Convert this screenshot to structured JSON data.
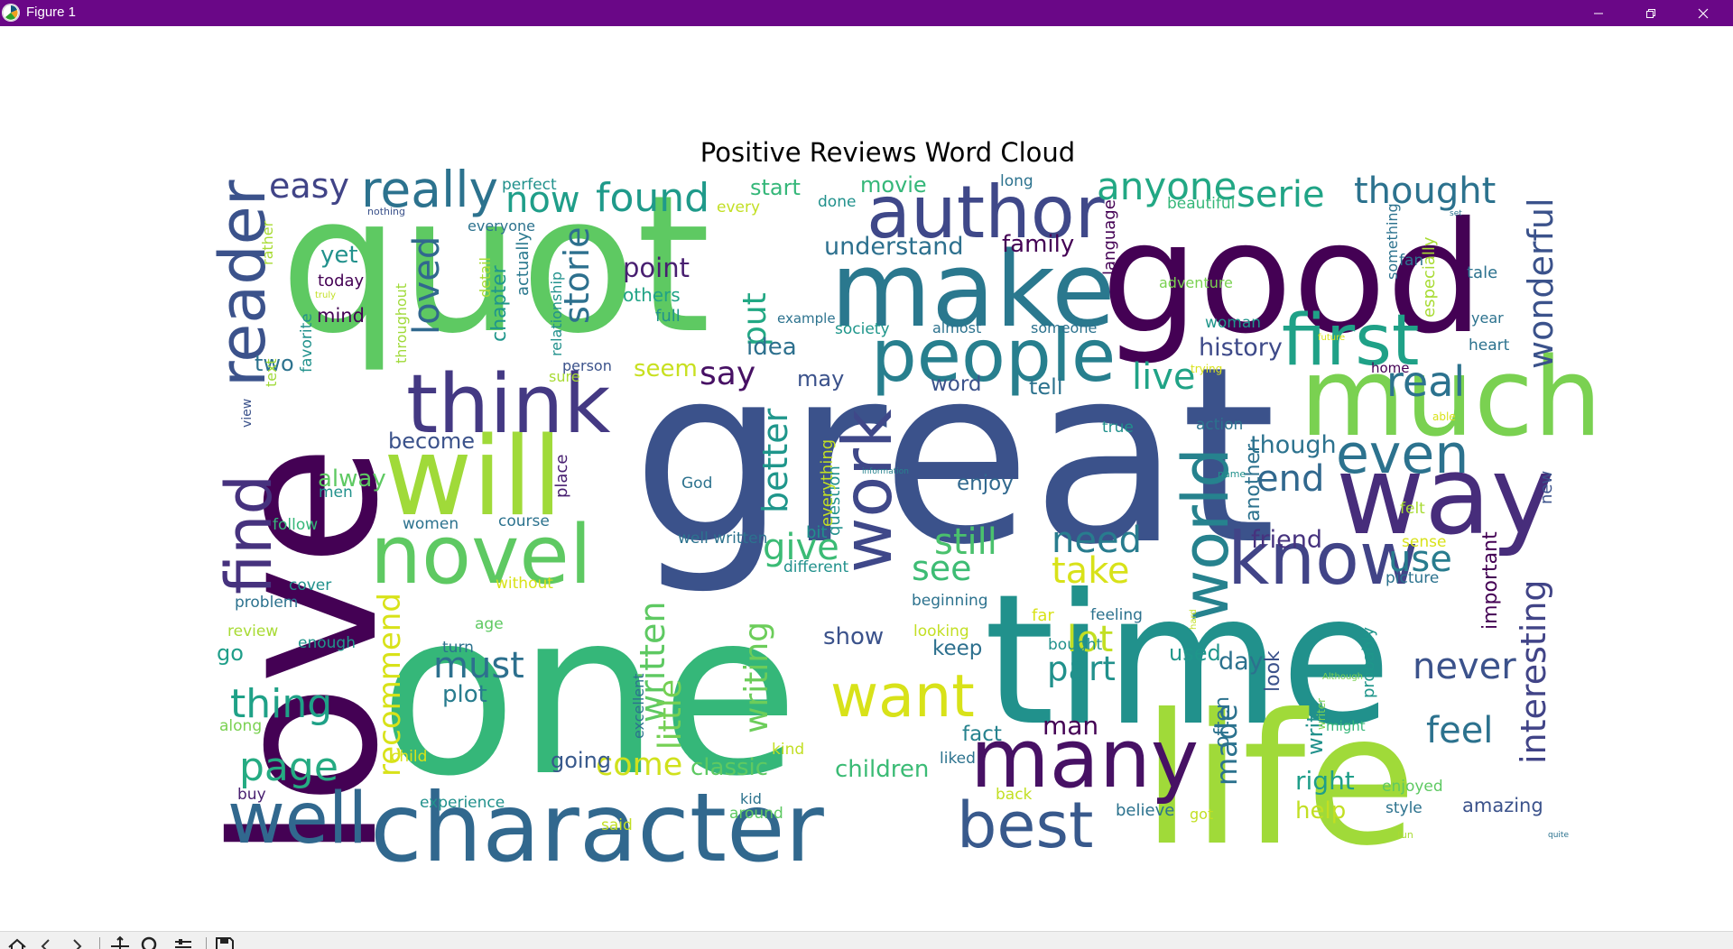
{
  "window": {
    "title": "Figure 1",
    "titlebar_color": "#6a0787",
    "icons": {
      "app": "matplotlib-icon",
      "minimize": "minimize-icon",
      "restore": "restore-icon",
      "close": "close-icon"
    }
  },
  "figure": {
    "title": "Positive Reviews Word Cloud",
    "background": "#ffffff",
    "colormap": "viridis"
  },
  "toolbar": {
    "buttons": [
      "home-icon",
      "back-icon",
      "forward-icon",
      "pan-icon",
      "zoom-icon",
      "configure-subplots-icon",
      "save-icon"
    ]
  },
  "words": [
    {
      "t": "quot",
      "c": "#5ec962",
      "r": 0
    },
    {
      "t": "good",
      "c": "#440154",
      "r": 0
    },
    {
      "t": "great",
      "c": "#3b528b",
      "r": 0
    },
    {
      "t": "one",
      "c": "#35b779",
      "r": 0
    },
    {
      "t": "time",
      "c": "#21918c",
      "r": 0
    },
    {
      "t": "love",
      "c": "#440154",
      "r": -90
    },
    {
      "t": "life",
      "c": "#a0da39",
      "r": 0
    },
    {
      "t": "make",
      "c": "#2a788e",
      "r": 0
    },
    {
      "t": "character",
      "c": "#31688e",
      "r": 0
    },
    {
      "t": "author",
      "c": "#3f4889",
      "r": 0
    },
    {
      "t": "much",
      "c": "#7ad151",
      "r": 0
    },
    {
      "t": "way",
      "c": "#472d7b",
      "r": 0
    },
    {
      "t": "will",
      "c": "#a0da39",
      "r": 0
    },
    {
      "t": "think",
      "c": "#443983",
      "r": 0
    },
    {
      "t": "novel",
      "c": "#5ec962",
      "r": 0
    },
    {
      "t": "people",
      "c": "#277f8e",
      "r": 0
    },
    {
      "t": "many",
      "c": "#471164",
      "r": 0
    },
    {
      "t": "first",
      "c": "#1fa187",
      "r": 0
    },
    {
      "t": "know",
      "c": "#414487",
      "r": 0
    },
    {
      "t": "best",
      "c": "#38598c",
      "r": 0
    },
    {
      "t": "well",
      "c": "#31688e",
      "r": 0
    },
    {
      "t": "even",
      "c": "#2c728e",
      "r": 0
    },
    {
      "t": "reader",
      "c": "#3b528b",
      "r": -90
    },
    {
      "t": "find",
      "c": "#46327e",
      "r": -90
    },
    {
      "t": "work",
      "c": "#3f4889",
      "r": -90
    },
    {
      "t": "world",
      "c": "#26828e",
      "r": -90
    },
    {
      "t": "want",
      "c": "#d8e219",
      "r": 0
    },
    {
      "t": "really",
      "c": "#2c728e",
      "r": 0
    },
    {
      "t": "found",
      "c": "#1f9a8a",
      "r": 0
    },
    {
      "t": "thought",
      "c": "#2c728e",
      "r": 0
    },
    {
      "t": "anyone",
      "c": "#22a884",
      "r": 0
    },
    {
      "t": "serie",
      "c": "#20a486",
      "r": 0
    },
    {
      "t": "easy",
      "c": "#414487",
      "r": 0
    },
    {
      "t": "now",
      "c": "#1f9e89",
      "r": 0
    },
    {
      "t": "storie",
      "c": "#2d708e",
      "r": -90
    },
    {
      "t": "loved",
      "c": "#31688e",
      "r": -90
    },
    {
      "t": "page",
      "c": "#25ab82",
      "r": 0
    },
    {
      "t": "thing",
      "c": "#1fa187",
      "r": 0
    },
    {
      "t": "must",
      "c": "#2d708e",
      "r": 0
    },
    {
      "t": "plot",
      "c": "#287c8e",
      "r": 0
    },
    {
      "t": "come",
      "c": "#d0e11c",
      "r": 0
    },
    {
      "t": "classic",
      "c": "#5ec962",
      "r": 0
    },
    {
      "t": "children",
      "c": "#3bbb75",
      "r": 0
    },
    {
      "t": "still",
      "c": "#4ac16d",
      "r": 0
    },
    {
      "t": "need",
      "c": "#287c8e",
      "r": 0
    },
    {
      "t": "take",
      "c": "#d8e219",
      "r": 0
    },
    {
      "t": "lot",
      "c": "#c2df23",
      "r": 0
    },
    {
      "t": "part",
      "c": "#21918c",
      "r": 0
    },
    {
      "t": "see",
      "c": "#3dbc74",
      "r": 0
    },
    {
      "t": "give",
      "c": "#3bbb75",
      "r": 0
    },
    {
      "t": "say",
      "c": "#471164",
      "r": 0
    },
    {
      "t": "better",
      "c": "#1f968b",
      "r": -90
    },
    {
      "t": "put",
      "c": "#22a884",
      "r": -90
    },
    {
      "t": "writing",
      "c": "#6ccd5a",
      "r": -90
    },
    {
      "t": "written",
      "c": "#5ec962",
      "r": -90
    },
    {
      "t": "little",
      "c": "#75d054",
      "r": -90
    },
    {
      "t": "recommend",
      "c": "#d8e219",
      "r": -90
    },
    {
      "t": "wonderful",
      "c": "#3b528b",
      "r": -90
    },
    {
      "t": "interesting",
      "c": "#414487",
      "r": -90
    },
    {
      "t": "made",
      "c": "#2c728e",
      "r": -90
    },
    {
      "t": "feel",
      "c": "#2c728e",
      "r": 0
    },
    {
      "t": "never",
      "c": "#3b528b",
      "r": 0
    },
    {
      "t": "use",
      "c": "#287c8e",
      "r": 0
    },
    {
      "t": "end",
      "c": "#31688e",
      "r": 0
    },
    {
      "t": "live",
      "c": "#20a386",
      "r": 0
    },
    {
      "t": "history",
      "c": "#3e4a89",
      "r": 0
    },
    {
      "t": "family",
      "c": "#440154",
      "r": 0
    },
    {
      "t": "understand",
      "c": "#2d708e",
      "r": 0
    },
    {
      "t": "movie",
      "c": "#35b779",
      "r": 0
    },
    {
      "t": "start",
      "c": "#35b779",
      "r": 0
    },
    {
      "t": "point",
      "c": "#481f70",
      "r": 0
    },
    {
      "t": "yet",
      "c": "#21918c",
      "r": 0
    },
    {
      "t": "idea",
      "c": "#2d708e",
      "r": 0
    },
    {
      "t": "man",
      "c": "#440154",
      "r": 0
    },
    {
      "t": "fact",
      "c": "#26828e",
      "r": 0
    },
    {
      "t": "keep",
      "c": "#2d708e",
      "r": 0
    },
    {
      "t": "enjoy",
      "c": "#31688e",
      "r": 0
    },
    {
      "t": "show",
      "c": "#3b528b",
      "r": 0
    },
    {
      "t": "going",
      "c": "#38598c",
      "r": 0
    },
    {
      "t": "right",
      "c": "#1f9e89",
      "r": 0
    },
    {
      "t": "help",
      "c": "#c2df23",
      "r": 0
    },
    {
      "t": "though",
      "c": "#2c728e",
      "r": 0
    },
    {
      "t": "friend",
      "c": "#46327e",
      "r": 0
    },
    {
      "t": "day",
      "c": "#2c728e",
      "r": 0
    },
    {
      "t": "used",
      "c": "#1f968b",
      "r": 0
    },
    {
      "t": "tell",
      "c": "#2c728e",
      "r": 0
    },
    {
      "t": "word",
      "c": "#3b528b",
      "r": 0
    },
    {
      "t": "may",
      "c": "#3b528b",
      "r": 0
    },
    {
      "t": "seem",
      "c": "#c8e020",
      "r": 0
    },
    {
      "t": "alway",
      "c": "#5ec962",
      "r": 0
    },
    {
      "t": "become",
      "c": "#3b528b",
      "r": 0
    },
    {
      "t": "two",
      "c": "#2c728e",
      "r": 0
    },
    {
      "t": "go",
      "c": "#1f9e89",
      "r": 0
    },
    {
      "t": "mind",
      "c": "#440154",
      "r": 0
    },
    {
      "t": "today",
      "c": "#440154",
      "r": 0
    },
    {
      "t": "full",
      "c": "#21918c",
      "r": 0
    },
    {
      "t": "others",
      "c": "#20a386",
      "r": 0
    },
    {
      "t": "chapter",
      "c": "#1f968b",
      "r": -90
    },
    {
      "t": "detail",
      "c": "#a8db34",
      "r": -90
    },
    {
      "t": "actually",
      "c": "#2a788e",
      "r": -90
    },
    {
      "t": "rather",
      "c": "#a8db34",
      "r": -90
    },
    {
      "t": "text",
      "c": "#a0da39",
      "r": -90
    },
    {
      "t": "view",
      "c": "#3b528b",
      "r": -90
    },
    {
      "t": "place",
      "c": "#481f70",
      "r": -90
    },
    {
      "t": "question",
      "c": "#21918c",
      "r": -90
    },
    {
      "t": "everything",
      "c": "#c2df23",
      "r": -90
    },
    {
      "t": "excellent",
      "c": "#2c728e",
      "r": -90
    },
    {
      "t": "another",
      "c": "#2c728e",
      "r": -90
    },
    {
      "t": "new",
      "c": "#3b528b",
      "r": -90
    },
    {
      "t": "important",
      "c": "#440154",
      "r": -90
    },
    {
      "t": "look",
      "c": "#3b528b",
      "r": -90
    },
    {
      "t": "often",
      "c": "#2c728e",
      "r": -90
    },
    {
      "t": "write",
      "c": "#21918c",
      "r": -90
    },
    {
      "t": "probably",
      "c": "#1f968b",
      "r": -90
    },
    {
      "t": "language",
      "c": "#440154",
      "r": -90
    },
    {
      "t": "something",
      "c": "#2c728e",
      "r": -90
    },
    {
      "t": "especially",
      "c": "#a8db34",
      "r": -90
    },
    {
      "t": "writer",
      "c": "#7ad151",
      "r": -90
    },
    {
      "t": "hard",
      "c": "#c2df23",
      "r": -90
    },
    {
      "t": "favorite",
      "c": "#21918c",
      "r": -90
    },
    {
      "t": "throughout",
      "c": "#a0da39",
      "r": -90
    },
    {
      "t": "relationship",
      "c": "#21918c",
      "r": -90
    },
    {
      "t": "person",
      "c": "#3b528b",
      "r": 0
    },
    {
      "t": "sure",
      "c": "#a8db34",
      "r": 0
    },
    {
      "t": "men",
      "c": "#21918c",
      "r": 0
    },
    {
      "t": "follow",
      "c": "#35b779",
      "r": 0
    },
    {
      "t": "women",
      "c": "#2c728e",
      "r": 0
    },
    {
      "t": "course",
      "c": "#2c728e",
      "r": 0
    },
    {
      "t": "cover",
      "c": "#21918c",
      "r": 0
    },
    {
      "t": "without",
      "c": "#d8e219",
      "r": 0
    },
    {
      "t": "problem",
      "c": "#2c728e",
      "r": 0
    },
    {
      "t": "review",
      "c": "#a8db34",
      "r": 0
    },
    {
      "t": "enough",
      "c": "#1f968b",
      "r": 0
    },
    {
      "t": "turn",
      "c": "#2c728e",
      "r": 0
    },
    {
      "t": "age",
      "c": "#5ec962",
      "r": 0
    },
    {
      "t": "along",
      "c": "#7ad151",
      "r": 0
    },
    {
      "t": "child",
      "c": "#d8e219",
      "r": 0
    },
    {
      "t": "buy",
      "c": "#481f70",
      "r": 0
    },
    {
      "t": "experience",
      "c": "#21918c",
      "r": 0
    },
    {
      "t": "said",
      "c": "#c2df23",
      "r": 0
    },
    {
      "t": "around",
      "c": "#5ec962",
      "r": 0
    },
    {
      "t": "kid",
      "c": "#2c728e",
      "r": 0
    },
    {
      "t": "kind",
      "c": "#c2df23",
      "r": 0
    },
    {
      "t": "liked",
      "c": "#2c728e",
      "r": 0
    },
    {
      "t": "back",
      "c": "#c2df23",
      "r": 0
    },
    {
      "t": "believe",
      "c": "#2c728e",
      "r": 0
    },
    {
      "t": "got",
      "c": "#c2df23",
      "r": 0
    },
    {
      "t": "enjoyed",
      "c": "#5ec962",
      "r": 0
    },
    {
      "t": "style",
      "c": "#2c728e",
      "r": 0
    },
    {
      "t": "amazing",
      "c": "#3b528b",
      "r": 0
    },
    {
      "t": "fun",
      "c": "#a8db34",
      "r": 0
    },
    {
      "t": "quite",
      "c": "#2c728e",
      "r": 0
    },
    {
      "t": "might",
      "c": "#35b779",
      "r": 0
    },
    {
      "t": "Although",
      "c": "#7ad151",
      "r": 0
    },
    {
      "t": "picture",
      "c": "#2c728e",
      "r": 0
    },
    {
      "t": "sense",
      "c": "#d8e219",
      "r": 0
    },
    {
      "t": "felt",
      "c": "#a8db34",
      "r": 0
    },
    {
      "t": "name",
      "c": "#21918c",
      "r": 0
    },
    {
      "t": "information",
      "c": "#26828e",
      "r": 0
    },
    {
      "t": "action",
      "c": "#2c728e",
      "r": 0
    },
    {
      "t": "true",
      "c": "#21918c",
      "r": 0
    },
    {
      "t": "trying",
      "c": "#d8e219",
      "r": 0
    },
    {
      "t": "home",
      "c": "#440154",
      "r": 0
    },
    {
      "t": "heart",
      "c": "#2c728e",
      "r": 0
    },
    {
      "t": "year",
      "c": "#2c728e",
      "r": 0
    },
    {
      "t": "woman",
      "c": "#1f968b",
      "r": 0
    },
    {
      "t": "future",
      "c": "#d8e219",
      "r": 0
    },
    {
      "t": "someone",
      "c": "#2c728e",
      "r": 0
    },
    {
      "t": "society",
      "c": "#1f968b",
      "r": 0
    },
    {
      "t": "almost",
      "c": "#2c728e",
      "r": 0
    },
    {
      "t": "example",
      "c": "#2c728e",
      "r": 0
    },
    {
      "t": "fan",
      "c": "#2c728e",
      "r": 0
    },
    {
      "t": "tale",
      "c": "#2c728e",
      "r": 0
    },
    {
      "t": "adventure",
      "c": "#7ad151",
      "r": 0
    },
    {
      "t": "beautiful",
      "c": "#35b779",
      "r": 0
    },
    {
      "t": "set",
      "c": "#2c728e",
      "r": 0
    },
    {
      "t": "long",
      "c": "#2c728e",
      "r": 0
    },
    {
      "t": "done",
      "c": "#21918c",
      "r": 0
    },
    {
      "t": "every",
      "c": "#c2df23",
      "r": 0
    },
    {
      "t": "perfect",
      "c": "#21918c",
      "r": 0
    },
    {
      "t": "nothing",
      "c": "#3b528b",
      "r": 0
    },
    {
      "t": "everyone",
      "c": "#2c728e",
      "r": 0
    },
    {
      "t": "truly",
      "c": "#c2df23",
      "r": 0
    },
    {
      "t": "bit",
      "c": "#21918c",
      "r": 0
    },
    {
      "t": "different",
      "c": "#21918c",
      "r": 0
    },
    {
      "t": "well written",
      "c": "#2c728e",
      "r": 0
    },
    {
      "t": "God",
      "c": "#2c728e",
      "r": 0
    },
    {
      "t": "beginning",
      "c": "#2c728e",
      "r": 0
    },
    {
      "t": "far",
      "c": "#d8e219",
      "r": 0
    },
    {
      "t": "feeling",
      "c": "#2c728e",
      "r": 0
    },
    {
      "t": "looking",
      "c": "#c2df23",
      "r": 0
    },
    {
      "t": "bought",
      "c": "#21918c",
      "r": 0
    },
    {
      "t": "real",
      "c": "#2c728e",
      "r": 0
    },
    {
      "t": "able",
      "c": "#d8e219",
      "r": 0
    },
    {
      "t": "learn",
      "c": "#c2df23",
      "r": 0
    },
    {
      "t": "human",
      "c": "#2c728e",
      "r": 0
    },
    {
      "t": "change",
      "c": "#2c728e",
      "r": 0
    },
    {
      "t": "hope",
      "c": "#2c728e",
      "r": 0
    },
    {
      "t": "u",
      "c": "#2c728e",
      "r": 0
    },
    {
      "t": "try",
      "c": "#d8e219",
      "r": -90
    }
  ]
}
